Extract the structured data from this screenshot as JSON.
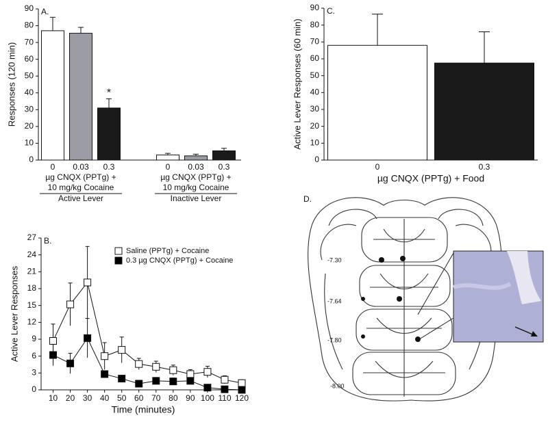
{
  "chart_data": [
    {
      "type": "bar",
      "panel": "A.",
      "ylabel": "Responses (120 min)",
      "categories": [
        "Active Lever",
        "Inactive Lever"
      ],
      "xlabel": [
        "µg CNQX (PPTg) +",
        "10 mg/kg Cocaine"
      ],
      "series": [
        {
          "name": "0",
          "color": "#ffffff",
          "values": [
            77,
            3
          ],
          "errors": [
            8,
            1
          ]
        },
        {
          "name": "0.03",
          "color": "#9a9ea4",
          "values": [
            75.5,
            2.5
          ],
          "errors": [
            3.5,
            1
          ]
        },
        {
          "name": "0.3",
          "color": "#1a1a1a",
          "values": [
            31,
            5.5
          ],
          "errors": [
            5.5,
            1.5
          ]
        }
      ],
      "annotations": [
        "*"
      ],
      "ylim": [
        0,
        90
      ],
      "yticks": [
        0,
        10,
        20,
        30,
        40,
        50,
        60,
        70,
        80,
        90
      ]
    },
    {
      "type": "line",
      "panel": "B.",
      "ylabel": "Active Lever Responses",
      "xlabel": "Time (minutes)",
      "x": [
        10,
        20,
        30,
        40,
        50,
        60,
        70,
        80,
        90,
        100,
        110,
        120
      ],
      "series": [
        {
          "name": "Saline (PPTg) + Cocaine",
          "color": "#ffffff",
          "values": [
            8.7,
            15.2,
            19.1,
            6,
            7.1,
            4.6,
            4.1,
            3.5,
            2.8,
            3.2,
            1.8,
            1.2
          ],
          "errors": [
            3,
            3.8,
            6.4,
            2.4,
            2.3,
            1,
            1,
            0.9,
            0.8,
            1,
            0.7,
            0.6
          ]
        },
        {
          "name": "0.3 µg CNQX (PPTg) + Cocaine",
          "color": "#000000",
          "values": [
            6.2,
            4.7,
            9.2,
            2.8,
            2,
            1.1,
            1.6,
            1.5,
            1.6,
            0.4,
            0.1,
            0
          ],
          "errors": [
            1.9,
            1.8,
            3.5,
            0.6,
            0.6,
            0.3,
            0.6,
            0.6,
            0.5,
            0.3,
            0.1,
            0
          ]
        }
      ],
      "xlim": [
        3,
        122
      ],
      "xticks": [
        10,
        20,
        30,
        40,
        50,
        60,
        70,
        80,
        90,
        100,
        110,
        120
      ],
      "ylim": [
        0,
        27
      ],
      "yticks": [
        0,
        3,
        6,
        9,
        12,
        15,
        18,
        21,
        24,
        27
      ]
    },
    {
      "type": "bar",
      "panel": "C.",
      "ylabel": "Active Lever Responses (60 min)",
      "xlabel": "µg CNQX (PPTg) + Food",
      "categories": [
        "0",
        "0.3"
      ],
      "values": [
        68,
        57.5
      ],
      "errors": [
        18.5,
        18.5
      ],
      "colors": [
        "#ffffff",
        "#1a1a1a"
      ],
      "ylim": [
        0,
        90
      ],
      "yticks": [
        0,
        10,
        20,
        30,
        40,
        50,
        60,
        70,
        80,
        90
      ]
    }
  ],
  "panel_d": {
    "label": "D.",
    "levels": [
      "-7.30",
      "-7.64",
      "-7.80",
      "-8.00"
    ]
  }
}
